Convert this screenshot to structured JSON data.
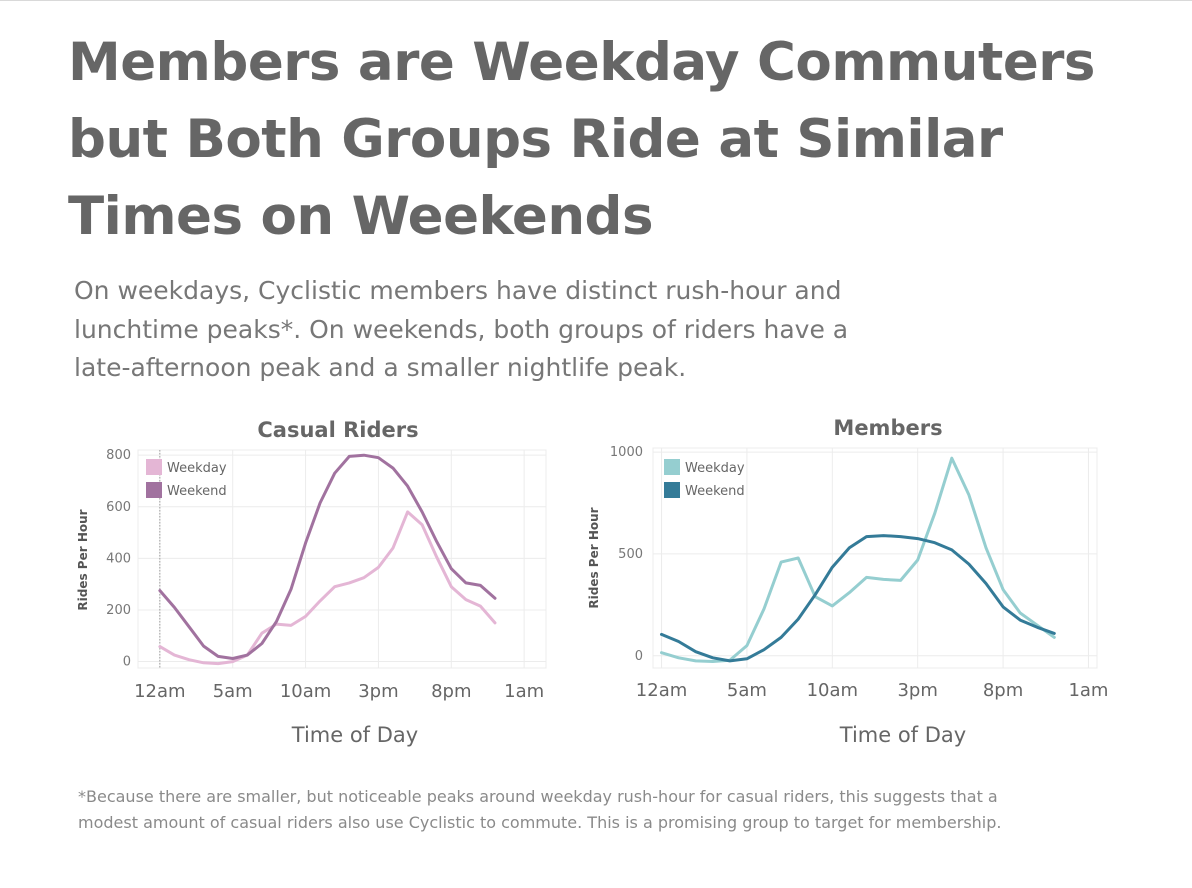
{
  "header": {
    "title": "Members are Weekday Commuters but Both Groups Ride at Similar Times on Weekends",
    "subtitle": "On weekdays, Cyclistic members have distinct rush-hour and lunchtime peaks*. On weekends, both groups of riders have a late-afternoon peak and a smaller nightlife peak."
  },
  "footnote": "*Because there are smaller, but noticeable peaks around weekday rush-hour for casual riders, this suggests that a modest amount of casual riders also use Cyclistic to commute. This is a promising group to target for membership.",
  "colors": {
    "casual_weekday": "#e4b6d5",
    "casual_weekend": "#a1729f",
    "member_weekday": "#95ced0",
    "member_weekend": "#347b98",
    "grid": "#ececec",
    "text": "#666666"
  },
  "chart_data": [
    {
      "type": "line",
      "title": "Casual Riders",
      "xlabel": "Time of Day",
      "ylabel": "Rides Per Hour",
      "x": [
        0,
        1,
        2,
        3,
        4,
        5,
        6,
        7,
        8,
        9,
        10,
        11,
        12,
        13,
        14,
        15,
        16,
        17,
        18,
        19,
        20,
        21,
        22,
        23
      ],
      "xticks": [
        0,
        5,
        10,
        15,
        20,
        25
      ],
      "xtick_labels": [
        "12am",
        "5am",
        "10am",
        "3pm",
        "8pm",
        "1am"
      ],
      "xlim": [
        -1.5,
        26.5
      ],
      "ylim": [
        -25,
        820
      ],
      "yticks": [
        0,
        200,
        400,
        600,
        800
      ],
      "grid": true,
      "legend_position": "top-left",
      "series": [
        {
          "name": "Weekday",
          "color_key": "casual_weekday",
          "values": [
            58,
            25,
            7,
            -5,
            -8,
            0,
            25,
            110,
            145,
            140,
            175,
            235,
            290,
            305,
            325,
            365,
            440,
            580,
            530,
            405,
            290,
            240,
            215,
            150
          ]
        },
        {
          "name": "Weekend",
          "color_key": "casual_weekend",
          "values": [
            275,
            210,
            135,
            60,
            20,
            12,
            25,
            70,
            155,
            280,
            460,
            615,
            730,
            795,
            800,
            790,
            750,
            680,
            580,
            465,
            360,
            305,
            295,
            245
          ]
        }
      ]
    },
    {
      "type": "line",
      "title": "Members",
      "xlabel": "Time of Day",
      "ylabel": "Rides Per Hour",
      "x": [
        0,
        1,
        2,
        3,
        4,
        5,
        6,
        7,
        8,
        9,
        10,
        11,
        12,
        13,
        14,
        15,
        16,
        17,
        18,
        19,
        20,
        21,
        22,
        23
      ],
      "xticks": [
        0,
        5,
        10,
        15,
        20,
        25
      ],
      "xtick_labels": [
        "12am",
        "5am",
        "10am",
        "3pm",
        "8pm",
        "1am"
      ],
      "xlim": [
        -0.5,
        25.5
      ],
      "ylim": [
        -60,
        1020
      ],
      "yticks": [
        0,
        500,
        1000
      ],
      "grid": true,
      "legend_position": "top-left",
      "series": [
        {
          "name": "Weekday",
          "color_key": "member_weekday",
          "values": [
            15,
            -10,
            -25,
            -28,
            -22,
            50,
            230,
            460,
            480,
            290,
            245,
            310,
            385,
            375,
            370,
            470,
            700,
            970,
            790,
            530,
            325,
            210,
            150,
            90
          ]
        },
        {
          "name": "Weekend",
          "color_key": "member_weekend",
          "values": [
            105,
            70,
            20,
            -10,
            -25,
            -15,
            30,
            90,
            180,
            300,
            435,
            530,
            585,
            590,
            585,
            575,
            555,
            520,
            450,
            355,
            240,
            175,
            140,
            110
          ]
        }
      ]
    }
  ]
}
